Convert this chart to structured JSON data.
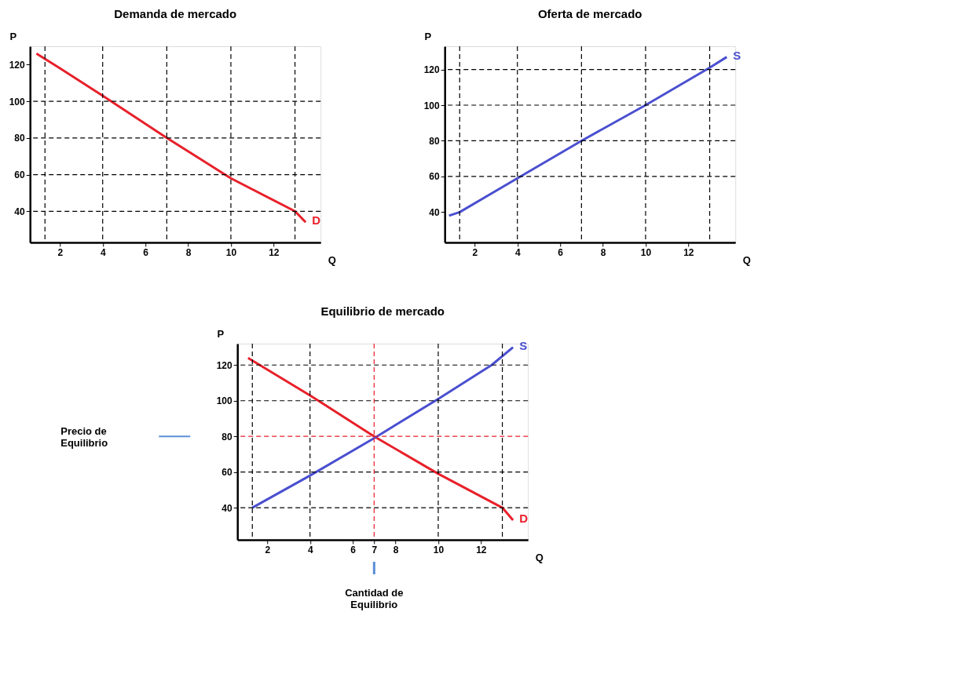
{
  "chart_data": [
    {
      "type": "line",
      "title": "Demanda de mercado",
      "xlabel": "Q",
      "ylabel": "P",
      "xlim": [
        0.6,
        14.2
      ],
      "ylim": [
        23,
        130
      ],
      "xticks": [
        2,
        4,
        6,
        8,
        10,
        12
      ],
      "yticks": [
        40,
        60,
        80,
        100,
        120
      ],
      "grid": false,
      "legend": false,
      "series": [
        {
          "name": "D",
          "color": "#e8202a",
          "x": [
            0.9,
            2,
            4,
            7,
            10,
            13,
            13.5
          ],
          "values": [
            126,
            118,
            103,
            80,
            58,
            40,
            34
          ]
        }
      ],
      "ref_lines": [
        {
          "axis": "x",
          "value": 1.3,
          "color": "#000000",
          "line_style": "dashed"
        },
        {
          "axis": "x",
          "value": 4,
          "color": "#000000",
          "line_style": "dashed"
        },
        {
          "axis": "x",
          "value": 7,
          "color": "#000000",
          "line_style": "dashed"
        },
        {
          "axis": "x",
          "value": 10,
          "color": "#000000",
          "line_style": "dashed"
        },
        {
          "axis": "x",
          "value": 13,
          "color": "#000000",
          "line_style": "dashed"
        },
        {
          "axis": "y",
          "value": 40,
          "color": "#000000",
          "line_style": "dashed"
        },
        {
          "axis": "y",
          "value": 60,
          "color": "#000000",
          "line_style": "dashed"
        },
        {
          "axis": "y",
          "value": 80,
          "color": "#000000",
          "line_style": "dashed"
        },
        {
          "axis": "y",
          "value": 100,
          "color": "#000000",
          "line_style": "dashed"
        }
      ]
    },
    {
      "type": "line",
      "title": "Oferta de mercado",
      "xlabel": "Q",
      "ylabel": "P",
      "xlim": [
        0.6,
        14.2
      ],
      "ylim": [
        23,
        133
      ],
      "xticks": [
        2,
        4,
        6,
        8,
        10,
        12
      ],
      "yticks": [
        40,
        60,
        80,
        100,
        120
      ],
      "grid": false,
      "legend": false,
      "series": [
        {
          "name": "S",
          "color": "#4a4fd0",
          "x": [
            0.8,
            1.3,
            4,
            7,
            10,
            13,
            13.8
          ],
          "values": [
            38,
            40,
            59,
            80,
            100,
            121,
            127
          ]
        }
      ],
      "ref_lines": [
        {
          "axis": "x",
          "value": 1.3,
          "color": "#000000",
          "line_style": "dashed"
        },
        {
          "axis": "x",
          "value": 4,
          "color": "#000000",
          "line_style": "dashed"
        },
        {
          "axis": "x",
          "value": 7,
          "color": "#000000",
          "line_style": "dashed"
        },
        {
          "axis": "x",
          "value": 10,
          "color": "#000000",
          "line_style": "dashed"
        },
        {
          "axis": "x",
          "value": 13,
          "color": "#000000",
          "line_style": "dashed"
        },
        {
          "axis": "y",
          "value": 60,
          "color": "#000000",
          "line_style": "dashed"
        },
        {
          "axis": "y",
          "value": 80,
          "color": "#000000",
          "line_style": "dashed"
        },
        {
          "axis": "y",
          "value": 100,
          "color": "#000000",
          "line_style": "dashed"
        },
        {
          "axis": "y",
          "value": 120,
          "color": "#000000",
          "line_style": "dashed"
        }
      ]
    },
    {
      "type": "line",
      "title": "Equilibrio de mercado",
      "xlabel": "Q",
      "ylabel": "P",
      "xlim": [
        0.6,
        14.2
      ],
      "ylim": [
        22,
        132
      ],
      "xticks": [
        2,
        4,
        6,
        7,
        8,
        10,
        12
      ],
      "yticks": [
        40,
        60,
        80,
        100,
        120
      ],
      "grid": false,
      "legend": false,
      "series": [
        {
          "name": "D",
          "color": "#e8202a",
          "x": [
            1.1,
            4,
            7,
            10,
            13,
            13.5
          ],
          "values": [
            124,
            103,
            80,
            59,
            40,
            33
          ]
        },
        {
          "name": "S",
          "color": "#4a4fd0",
          "x": [
            1.3,
            4,
            7,
            10,
            12.5,
            13.5
          ],
          "values": [
            40,
            58,
            79,
            101,
            120,
            130
          ]
        }
      ],
      "ref_lines": [
        {
          "axis": "x",
          "value": 1.3,
          "color": "#000000",
          "line_style": "dashed"
        },
        {
          "axis": "x",
          "value": 4,
          "color": "#000000",
          "line_style": "dashed"
        },
        {
          "axis": "x",
          "value": 10,
          "color": "#000000",
          "line_style": "dashed"
        },
        {
          "axis": "x",
          "value": 13,
          "color": "#000000",
          "line_style": "dashed"
        },
        {
          "axis": "y",
          "value": 40,
          "color": "#000000",
          "line_style": "dashed"
        },
        {
          "axis": "y",
          "value": 60,
          "color": "#000000",
          "line_style": "dashed"
        },
        {
          "axis": "y",
          "value": 100,
          "color": "#000000",
          "line_style": "dashed"
        },
        {
          "axis": "y",
          "value": 120,
          "color": "#000000",
          "line_style": "dashed"
        },
        {
          "axis": "x",
          "value": 7,
          "color": "#e8202a",
          "line_style": "dashed"
        },
        {
          "axis": "y",
          "value": 80,
          "color": "#e8202a",
          "line_style": "dashed"
        }
      ],
      "annotations": [
        "Precio de\nEquilibrio",
        "Cantidad de\nEquilibrio"
      ]
    }
  ]
}
